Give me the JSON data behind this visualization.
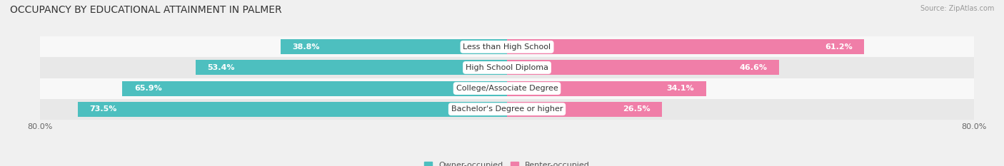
{
  "title": "OCCUPANCY BY EDUCATIONAL ATTAINMENT IN PALMER",
  "source": "Source: ZipAtlas.com",
  "categories": [
    "Less than High School",
    "High School Diploma",
    "College/Associate Degree",
    "Bachelor's Degree or higher"
  ],
  "owner_values": [
    38.8,
    53.4,
    65.9,
    73.5
  ],
  "renter_values": [
    61.2,
    46.6,
    34.1,
    26.5
  ],
  "owner_color": "#4dbfbf",
  "renter_color": "#f07ea8",
  "renter_color_light": "#f7b8d0",
  "owner_label": "Owner-occupied",
  "renter_label": "Renter-occupied",
  "axis_left_label": "80.0%",
  "axis_right_label": "80.0%",
  "xlim": [
    -80,
    80
  ],
  "bar_height": 0.72,
  "bg_color": "#f0f0f0",
  "row_bg_even": "#f8f8f8",
  "row_bg_odd": "#e8e8e8",
  "title_fontsize": 10,
  "label_fontsize": 8,
  "tick_fontsize": 8,
  "value_fontsize": 8,
  "owner_value_threshold": 15,
  "renter_value_threshold": 15
}
